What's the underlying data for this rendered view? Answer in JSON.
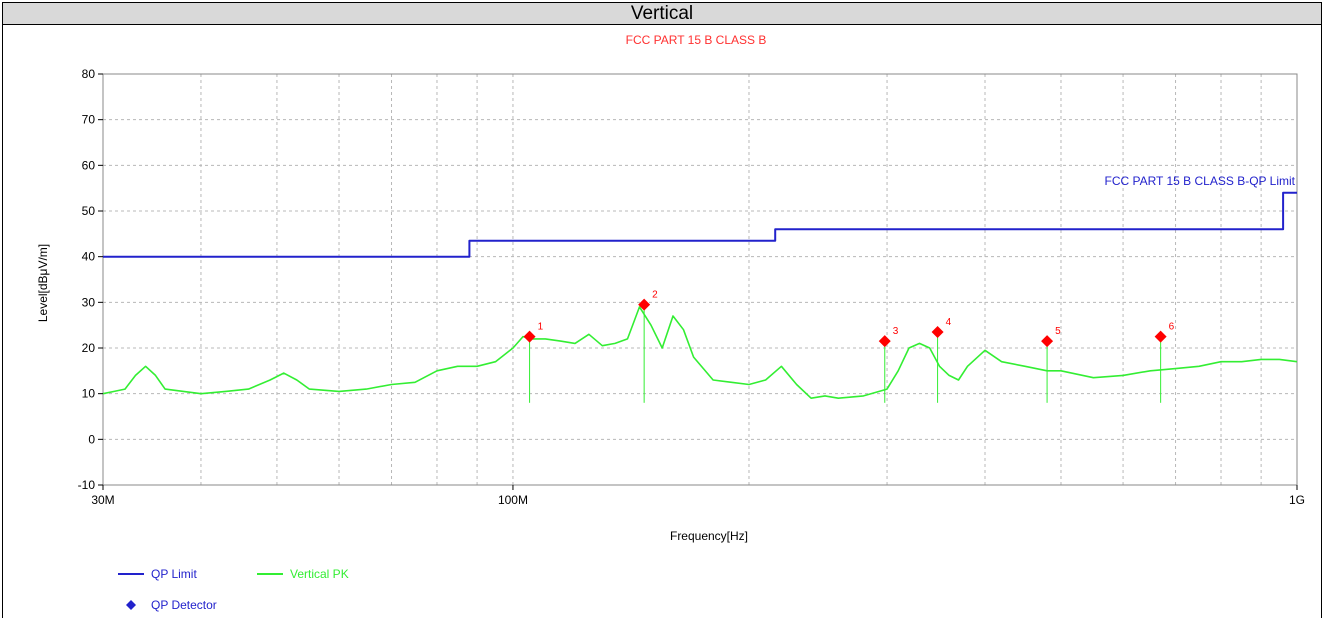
{
  "header": {
    "title": "Vertical"
  },
  "chart_data": {
    "type": "line",
    "title": "FCC PART 15 B CLASS B",
    "xlabel": "Frequency[Hz]",
    "ylabel": "Level[dBμV/m]",
    "x_scale": "log",
    "xlim": [
      30,
      1000
    ],
    "ylim": [
      -10,
      80
    ],
    "grid": true,
    "x_tick_labels": [
      {
        "value": 30,
        "label": "30M"
      },
      {
        "value": 100,
        "label": "100M"
      },
      {
        "value": 1000,
        "label": "1G"
      }
    ],
    "y_ticks": [
      -10,
      0,
      10,
      20,
      30,
      40,
      50,
      60,
      70,
      80
    ],
    "limit_label": "FCC PART 15 B CLASS B-QP Limit",
    "legend_position": "bottom-left",
    "colors": {
      "limit": "#2222cc",
      "pk": "#33ee33",
      "marker": "#ff0000",
      "title": "#ff3030"
    },
    "series": [
      {
        "name": "QP Limit",
        "x": [
          30,
          88,
          88,
          216,
          216,
          960,
          960,
          1000
        ],
        "y": [
          40,
          40,
          43.5,
          43.5,
          46,
          46,
          54,
          54
        ]
      },
      {
        "name": "Vertical PK",
        "x": [
          30,
          31,
          32,
          33,
          34,
          35,
          36,
          38,
          40,
          43,
          46,
          49,
          51,
          53,
          55,
          60,
          65,
          70,
          75,
          80,
          85,
          90,
          95,
          100,
          103,
          106,
          110,
          115,
          120,
          125,
          130,
          135,
          140,
          145,
          150,
          155,
          160,
          165,
          170,
          180,
          190,
          200,
          210,
          220,
          230,
          240,
          250,
          260,
          280,
          300,
          310,
          320,
          330,
          340,
          350,
          360,
          370,
          380,
          400,
          420,
          450,
          480,
          500,
          550,
          600,
          650,
          700,
          750,
          800,
          850,
          900,
          950,
          1000
        ],
        "y": [
          10,
          10.5,
          11,
          14,
          16,
          14,
          11,
          10.5,
          10,
          10.5,
          11,
          13,
          14.5,
          13,
          11,
          10.5,
          11,
          12,
          12.5,
          15,
          16,
          16,
          17,
          20,
          22.5,
          22,
          22,
          21.5,
          21,
          23,
          20.5,
          21,
          22,
          29,
          25,
          20,
          27,
          24,
          18,
          13,
          12.5,
          12,
          13,
          16,
          12,
          9,
          9.5,
          9,
          9.5,
          11,
          15,
          20,
          21,
          20,
          16,
          14,
          13,
          16,
          19.5,
          17,
          16,
          15,
          15,
          13.5,
          14,
          15,
          15.5,
          16,
          17,
          17,
          17.5,
          17.5,
          17
        ]
      }
    ],
    "markers": {
      "name": "QP Detector",
      "points": [
        {
          "label": "1",
          "x": 105,
          "y": 22.5
        },
        {
          "label": "2",
          "x": 147,
          "y": 29.5
        },
        {
          "label": "3",
          "x": 298,
          "y": 21.5
        },
        {
          "label": "4",
          "x": 348,
          "y": 23.5
        },
        {
          "label": "5",
          "x": 480,
          "y": 21.5
        },
        {
          "label": "6",
          "x": 670,
          "y": 22.5
        }
      ]
    }
  }
}
